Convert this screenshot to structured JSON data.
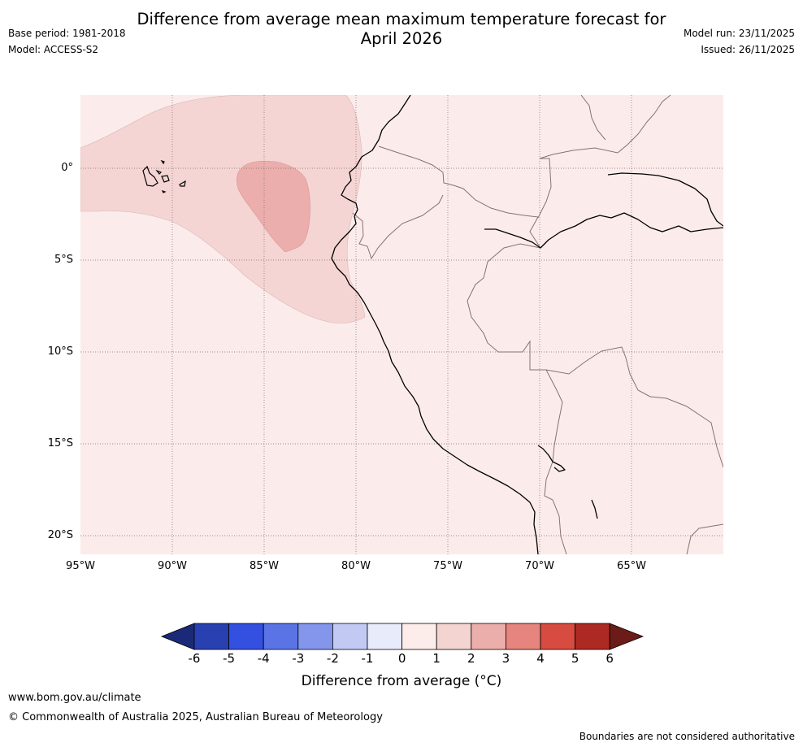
{
  "title_line1": "Difference from average mean maximum temperature forecast for",
  "title_line2": "April 2026",
  "base_period": "Base period: 1981-2018",
  "model": "Model: ACCESS-S2",
  "model_run": "Model run: 23/11/2025",
  "issued": "Issued: 26/11/2025",
  "map": {
    "lat_labels": [
      "0°",
      "5°S",
      "10°S",
      "15°S",
      "20°S"
    ],
    "lon_labels": [
      "95°W",
      "90°W",
      "85°W",
      "80°W",
      "75°W",
      "70°W",
      "65°W"
    ],
    "colors": {
      "land_sea_0_1": "#fbeceb",
      "anomaly_1_2": "#f4d5d3",
      "anomaly_2_3": "#ebaeac",
      "coastline": "#000000",
      "border": "#8a7070",
      "grid": "#7a6a6a"
    }
  },
  "colorbar": {
    "ticks": [
      "-6",
      "-5",
      "-4",
      "-3",
      "-2",
      "-1",
      "0",
      "1",
      "2",
      "3",
      "4",
      "5",
      "6"
    ],
    "colors": [
      "#1b2a78",
      "#2840b0",
      "#3350e0",
      "#5a74e6",
      "#8396ec",
      "#c2caf3",
      "#e8ebfa",
      "#fcecea",
      "#f4d4d1",
      "#ecaeaa",
      "#e5857e",
      "#d84b40",
      "#ac2a22",
      "#6b1c18"
    ],
    "title": "Difference from average (°C)"
  },
  "footer": {
    "website": "www.bom.gov.au/climate",
    "copyright": "© Commonwealth of Australia 2025, Australian Bureau of Meteorology",
    "disclaimer": "Boundaries are not considered authoritative"
  }
}
